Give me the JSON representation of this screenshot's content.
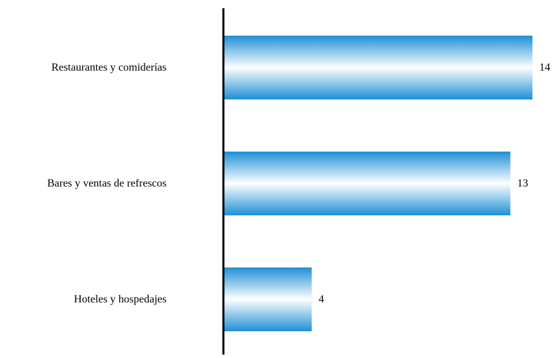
{
  "chart_data": {
    "type": "bar",
    "orientation": "horizontal",
    "categories": [
      "Restaurantes y comiderías",
      "Bares y ventas de refrescos",
      "Hoteles y hospedajes"
    ],
    "values": [
      14,
      13,
      4
    ],
    "value_labels": [
      "14",
      "13",
      "4"
    ],
    "title": "",
    "xlabel": "",
    "ylabel": "",
    "xlim": [
      0,
      14
    ],
    "grid": false,
    "legend": "none",
    "colors": {
      "bar_edge": "#1e8fd6",
      "bar_center": "#ffffff",
      "axis": "#000000"
    }
  }
}
